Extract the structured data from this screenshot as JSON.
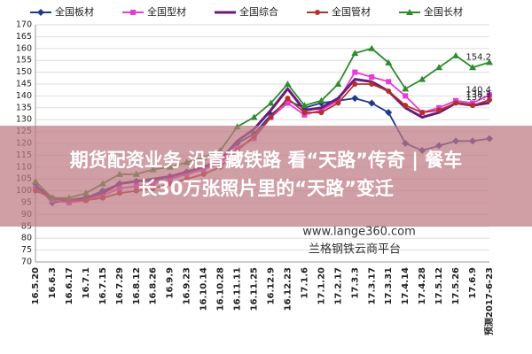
{
  "chart_data": {
    "type": "line",
    "categories": [
      "16.5.20",
      "16.6.3",
      "16.6.17",
      "16.7.1",
      "16.7.15",
      "16.7.29",
      "16.8.12",
      "16.8.26",
      "16.9.9",
      "16.9.23",
      "16.10.14",
      "16.10.28",
      "16.11.11",
      "16.11.25",
      "16.12.9",
      "16.12.23",
      "17.1.6",
      "17.1.20",
      "17.2.17",
      "17.3.3",
      "17.3.17",
      "17.3.31",
      "17.4.14",
      "17.4.28",
      "17.5.12",
      "17.5.26",
      "17.6.9",
      "预测2017-6-23"
    ],
    "series": [
      {
        "name": "全国板材",
        "color": "#1f3a8a",
        "marker": "diamond",
        "label_last": false,
        "values": [
          103,
          95,
          96,
          97,
          100,
          103,
          104,
          104,
          106,
          108,
          110,
          113,
          120,
          124,
          132,
          138,
          135,
          137,
          138,
          139,
          137,
          133,
          120,
          117,
          119,
          121,
          121,
          122
        ]
      },
      {
        "name": "全国型材",
        "color": "#e83ad6",
        "marker": "square",
        "label_last": true,
        "values": [
          101,
          96,
          95,
          96,
          98,
          101,
          102,
          103,
          105,
          107,
          109,
          112,
          118,
          122,
          131,
          137,
          132,
          134,
          138,
          150,
          148,
          146,
          140,
          133,
          135,
          138,
          137,
          140.4
        ]
      },
      {
        "name": "全国综合",
        "color": "#6a1b7a",
        "marker": "none",
        "label_last": true,
        "values": [
          102,
          97,
          96,
          97,
          99,
          103,
          104,
          105,
          106,
          108,
          110,
          113,
          121,
          126,
          134,
          143,
          134,
          135,
          139,
          147,
          146,
          142,
          135,
          131,
          133,
          137,
          136,
          137.1
        ]
      },
      {
        "name": "全国管材",
        "color": "#b5302a",
        "marker": "circle",
        "label_last": true,
        "values": [
          100,
          97,
          96,
          96,
          97,
          99,
          100,
          101,
          103,
          105,
          107,
          110,
          117,
          123,
          131,
          139,
          133,
          133,
          137,
          145,
          145,
          142,
          136,
          133,
          134,
          137,
          136,
          138.3
        ]
      },
      {
        "name": "全国长材",
        "color": "#2e8b2e",
        "marker": "triangle",
        "label_last": true,
        "values": [
          104,
          97,
          97,
          99,
          103,
          107,
          107,
          109,
          110,
          112,
          114,
          117,
          127,
          131,
          137,
          145,
          136,
          138,
          145,
          158,
          160,
          154,
          143,
          147,
          152,
          157,
          152,
          154.2
        ]
      }
    ],
    "ylim": [
      70,
      170
    ],
    "yticks": [
      70,
      75,
      80,
      85,
      90,
      95,
      100,
      105,
      110,
      115,
      120,
      125,
      130,
      135,
      140,
      145,
      150,
      155,
      160,
      165,
      170
    ],
    "grid": true,
    "watermark": [
      "www.lange360.com",
      "兰格钢铁云商平台"
    ]
  },
  "banner": {
    "lines": [
      "期货配资业务 沿青藏铁路 看“天路”传奇 | 餐车",
      "长30万张照片里的“天路”变迁"
    ]
  }
}
